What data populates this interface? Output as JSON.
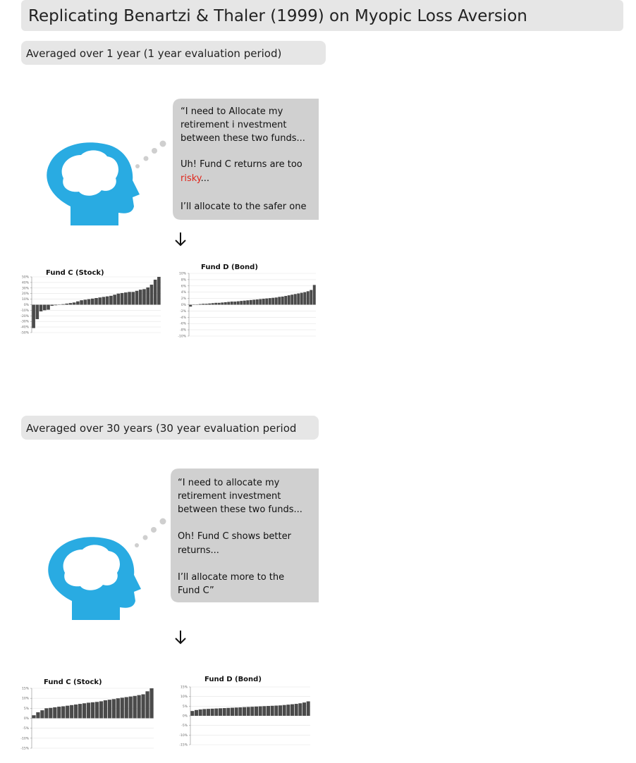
{
  "title": "Replicating Benartzi & Thaler (1999) on Myopic Loss Aversion",
  "sections": [
    {
      "heading": "Averaged over 1 year (1 year evaluation period)",
      "bubble": {
        "lines": [
          "“I need to Allocate my",
          "retirement i nvestment",
          "between these two funds...",
          "Uh! Fund C returns are too",
          "I’ll allocate to the safer one"
        ],
        "highlight": "risky",
        "after_highlight": "..."
      }
    },
    {
      "heading": "Averaged over 30 years (30 year evaluation period",
      "bubble": {
        "lines": [
          "“I need to allocate my",
          "retirement investment",
          "between these two funds...",
          "Oh! Fund C shows better",
          "returns...",
          "I’ll allocate more to the",
          "Fund C”"
        ]
      }
    }
  ],
  "chart_data": [
    {
      "type": "bar",
      "title": "Fund C (Stock)",
      "color": "#4a4a4a",
      "grid": true,
      "values": [
        -42,
        -26,
        -12,
        -10,
        -9,
        -2,
        -1,
        0,
        1,
        2,
        3,
        4,
        6,
        8,
        9,
        10,
        11,
        12,
        13,
        14,
        15,
        16,
        18,
        20,
        21,
        22,
        23,
        23,
        25,
        27,
        28,
        31,
        36,
        45,
        50
      ],
      "ylim": [
        -50,
        50
      ],
      "yticks": [
        {
          "value": 50,
          "label": "50%"
        },
        {
          "value": 40,
          "label": "40%"
        },
        {
          "value": 30,
          "label": "30%"
        },
        {
          "value": 20,
          "label": "20%"
        },
        {
          "value": 10,
          "label": "10%"
        },
        {
          "value": 0,
          "label": "0%"
        },
        {
          "value": -10,
          "label": "-10%"
        },
        {
          "value": -20,
          "label": "-20%"
        },
        {
          "value": -30,
          "label": "-30%"
        },
        {
          "value": -40,
          "label": "-40%"
        },
        {
          "value": -50,
          "label": "-50%"
        }
      ]
    },
    {
      "type": "bar",
      "title": "Fund D (Bond)",
      "color": "#4a4a4a",
      "grid": true,
      "values": [
        -0.6,
        0.1,
        0.1,
        0.2,
        0.3,
        0.3,
        0.4,
        0.5,
        0.6,
        0.6,
        0.7,
        0.8,
        0.9,
        1.0,
        1.0,
        1.1,
        1.2,
        1.3,
        1.4,
        1.5,
        1.6,
        1.7,
        1.8,
        1.9,
        2.0,
        2.1,
        2.2,
        2.3,
        2.5,
        2.6,
        2.8,
        3.0,
        3.2,
        3.4,
        3.6,
        3.8,
        4.0,
        4.3,
        4.7,
        6.3
      ],
      "ylim": [
        -10,
        10
      ],
      "yticks": [
        {
          "value": 10,
          "label": "10%"
        },
        {
          "value": 8,
          "label": "8%"
        },
        {
          "value": 6,
          "label": "6%"
        },
        {
          "value": 4,
          "label": "4%"
        },
        {
          "value": 2,
          "label": "2%"
        },
        {
          "value": 0,
          "label": "0%"
        },
        {
          "value": -2,
          "label": "-2%"
        },
        {
          "value": -4,
          "label": "-4%"
        },
        {
          "value": -6,
          "label": "-6%"
        },
        {
          "value": -8,
          "label": "-8%"
        },
        {
          "value": -10,
          "label": "-10%"
        }
      ]
    },
    {
      "type": "bar",
      "title": "Fund C (Stock)",
      "color": "#4a4a4a",
      "grid": true,
      "values": [
        1.5,
        3,
        4,
        5,
        5.2,
        5.5,
        5.8,
        6,
        6.3,
        6.6,
        6.9,
        7.2,
        7.5,
        7.8,
        8,
        8.2,
        8.5,
        9,
        9.3,
        9.6,
        10,
        10.3,
        10.6,
        10.9,
        11.2,
        11.6,
        12,
        13.5,
        15
      ],
      "ylim": [
        -15,
        15
      ],
      "yticks": [
        {
          "value": 15,
          "label": "15%"
        },
        {
          "value": 10,
          "label": "10%"
        },
        {
          "value": 5,
          "label": "5%"
        },
        {
          "value": 0,
          "label": "0%"
        },
        {
          "value": -5,
          "label": "-5%"
        },
        {
          "value": -10,
          "label": "-10%"
        },
        {
          "value": -15,
          "label": "-15%"
        }
      ]
    },
    {
      "type": "bar",
      "title": "Fund D (Bond)",
      "color": "#4a4a4a",
      "grid": true,
      "values": [
        2.5,
        3,
        3.3,
        3.5,
        3.6,
        3.7,
        3.8,
        3.9,
        4,
        4.1,
        4.2,
        4.3,
        4.4,
        4.5,
        4.6,
        4.7,
        4.8,
        4.9,
        5,
        5.1,
        5.2,
        5.3,
        5.4,
        5.6,
        5.8,
        6,
        6.2,
        6.5,
        6.9,
        7.5
      ],
      "ylim": [
        -15,
        15
      ],
      "yticks": [
        {
          "value": 15,
          "label": "15%"
        },
        {
          "value": 10,
          "label": "10%"
        },
        {
          "value": 5,
          "label": "5%"
        },
        {
          "value": 0,
          "label": "0%"
        },
        {
          "value": -5,
          "label": "-5%"
        },
        {
          "value": -10,
          "label": "-10%"
        },
        {
          "value": -15,
          "label": "-15%"
        }
      ]
    }
  ]
}
